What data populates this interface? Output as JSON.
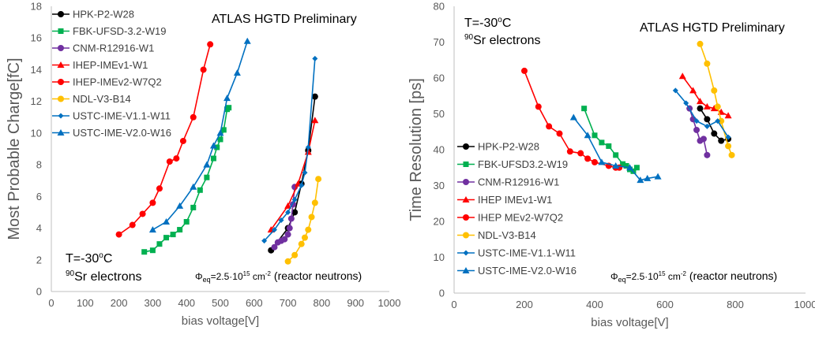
{
  "chart_data": [
    {
      "type": "scatter",
      "xlabel": "bias voltage[V]",
      "ylabel": "Most Probable Charge[fC]",
      "xlim": [
        0,
        1000
      ],
      "ylim": [
        0,
        18
      ],
      "x_ticks": [
        "0",
        "100",
        "200",
        "300",
        "400",
        "500",
        "600",
        "700",
        "800",
        "900",
        "1000"
      ],
      "y_ticks": [
        "0",
        "2",
        "4",
        "6",
        "8",
        "10",
        "12",
        "14",
        "16",
        "18"
      ],
      "grid": false,
      "legend_position": "top-left",
      "annotations": {
        "title": "ATLAS HGTD Preliminary",
        "temperature": "T=-30",
        "temperature_sup": "o",
        "temperature_unit": "C",
        "source_sup": "90",
        "source": "Sr electrons",
        "fluence_phi": "Φ",
        "fluence_sub": "eq",
        "fluence_mid": "=2.5·10",
        "fluence_exp": "15",
        "fluence_unit": " cm",
        "fluence_unit_exp": "-2",
        "fluence_tail": " (reactor neutrons)"
      },
      "series": [
        {
          "name": "HPK-P2-W28",
          "color": "#000000",
          "marker": "circle",
          "x": [
            650,
            700,
            720,
            740,
            760,
            780
          ],
          "y": [
            2.6,
            4.0,
            5.0,
            6.8,
            8.9,
            12.3
          ]
        },
        {
          "name": "FBK-UFSD-3.2-W19",
          "color": "#00b050",
          "marker": "square",
          "x": [
            275,
            300,
            320,
            340,
            360,
            380,
            400,
            420,
            440,
            460,
            480,
            490,
            500,
            510,
            520,
            525
          ],
          "y": [
            2.5,
            2.6,
            3.0,
            3.4,
            3.6,
            3.9,
            4.4,
            5.3,
            6.4,
            7.2,
            8.4,
            9.1,
            9.6,
            10.2,
            11.5,
            11.6
          ]
        },
        {
          "name": "CNM-R12916-W1",
          "color": "#7030a0",
          "marker": "circle",
          "x": [
            660,
            670,
            680,
            690,
            700,
            705,
            710,
            715,
            720
          ],
          "y": [
            2.8,
            3.1,
            3.2,
            3.3,
            3.6,
            4.0,
            4.6,
            5.5,
            6.6
          ]
        },
        {
          "name": "IHEP-IMEv1-W1",
          "color": "#ff0000",
          "marker": "triangle",
          "x": [
            650,
            700,
            730,
            760,
            780
          ],
          "y": [
            3.9,
            5.4,
            6.8,
            8.8,
            10.8
          ]
        },
        {
          "name": "IHEP-IMEv2-W7Q2",
          "color": "#ff0000",
          "marker": "circle",
          "x": [
            200,
            240,
            270,
            300,
            320,
            350,
            370,
            390,
            420,
            450,
            470
          ],
          "y": [
            3.6,
            4.2,
            4.9,
            5.6,
            6.5,
            8.2,
            8.4,
            9.5,
            11.0,
            14.0,
            15.6
          ]
        },
        {
          "name": "NDL-V3-B14",
          "color": "#ffc000",
          "marker": "circle",
          "x": [
            700,
            720,
            740,
            750,
            760,
            770,
            780,
            790
          ],
          "y": [
            1.9,
            2.3,
            3.0,
            3.4,
            3.9,
            4.7,
            5.6,
            7.1
          ]
        },
        {
          "name": "USTC-IME-V1.1-W11",
          "color": "#0070c0",
          "marker": "diamond",
          "x": [
            630,
            660,
            680,
            700,
            720,
            740,
            750,
            760,
            780
          ],
          "y": [
            3.2,
            3.9,
            4.5,
            5.0,
            5.8,
            6.7,
            7.5,
            9.1,
            14.7
          ]
        },
        {
          "name": "USTC-IME-V2.0-W16",
          "color": "#0070c0",
          "marker": "triangle",
          "x": [
            300,
            340,
            380,
            420,
            460,
            480,
            500,
            520,
            550,
            580
          ],
          "y": [
            3.9,
            4.4,
            5.4,
            6.6,
            8.0,
            9.2,
            10.0,
            12.2,
            13.8,
            15.8
          ]
        }
      ]
    },
    {
      "type": "scatter",
      "xlabel": "bias voltage[V]",
      "ylabel": "Time Resolution [ps]",
      "xlim": [
        0,
        1000
      ],
      "ylim": [
        0,
        80
      ],
      "x_ticks": [
        "0",
        "200",
        "400",
        "600",
        "800",
        "1000"
      ],
      "y_ticks": [
        "0",
        "10",
        "20",
        "30",
        "40",
        "50",
        "60",
        "70",
        "80"
      ],
      "grid": false,
      "legend_position": "bottom-left",
      "annotations": {
        "title": "ATLAS HGTD Preliminary",
        "temperature": "T=-30",
        "temperature_sup": "o",
        "temperature_unit": "C",
        "source_sup": "90",
        "source": "Sr electrons",
        "fluence_phi": "Φ",
        "fluence_sub": "eq",
        "fluence_mid": "=2.5·10",
        "fluence_exp": "15",
        "fluence_unit": " cm",
        "fluence_unit_exp": "-2",
        "fluence_tail": " (reactor neutrons)"
      },
      "series": [
        {
          "name": "HPK-P2-W28",
          "color": "#000000",
          "marker": "circle",
          "x": [
            700,
            720,
            740,
            760,
            780
          ],
          "y": [
            51.5,
            48.5,
            44.5,
            42.5,
            43.0
          ]
        },
        {
          "name": "FBK-UFSD3.2-W19",
          "color": "#00b050",
          "marker": "square",
          "x": [
            370,
            400,
            420,
            440,
            460,
            480,
            490,
            500,
            510,
            520
          ],
          "y": [
            51.5,
            44.0,
            42.0,
            41.0,
            38.5,
            36.0,
            35.5,
            34.5,
            34.0,
            35.0
          ]
        },
        {
          "name": "CNM-R12916-W1",
          "color": "#7030a0",
          "marker": "circle",
          "x": [
            670,
            680,
            690,
            700,
            710,
            720
          ],
          "y": [
            51.5,
            48.5,
            45.5,
            42.5,
            43.0,
            38.5
          ]
        },
        {
          "name": "IHEP IMEv1-W1",
          "color": "#ff0000",
          "marker": "triangle",
          "x": [
            650,
            680,
            700,
            720,
            740,
            760,
            780
          ],
          "y": [
            60.5,
            56.5,
            53.5,
            52.0,
            51.5,
            50.5,
            49.5
          ]
        },
        {
          "name": "IHEP MEv2-W7Q2",
          "color": "#ff0000",
          "marker": "circle",
          "x": [
            200,
            240,
            270,
            300,
            330,
            360,
            380,
            400,
            440,
            460,
            470
          ],
          "y": [
            62.0,
            52.0,
            46.5,
            44.5,
            39.5,
            39.0,
            37.5,
            36.5,
            35.5,
            35.0,
            35.0
          ]
        },
        {
          "name": "NDL-V3-B14",
          "color": "#ffc000",
          "marker": "circle",
          "x": [
            700,
            720,
            740,
            750,
            760,
            780,
            790
          ],
          "y": [
            69.5,
            64.0,
            56.5,
            52.0,
            48.0,
            41.0,
            38.5
          ]
        },
        {
          "name": "USTC-IME-V1.1-W11",
          "color": "#0070c0",
          "marker": "diamond",
          "x": [
            630,
            660,
            690,
            720,
            750,
            780
          ],
          "y": [
            56.5,
            53.0,
            48.0,
            46.5,
            48.0,
            43.5
          ]
        },
        {
          "name": "USTC-IME-V2.0-W16",
          "color": "#0070c0",
          "marker": "triangle",
          "x": [
            340,
            380,
            420,
            460,
            500,
            530,
            550,
            580
          ],
          "y": [
            49.0,
            44.0,
            36.5,
            35.5,
            35.0,
            31.5,
            32.0,
            32.5
          ]
        }
      ]
    }
  ]
}
